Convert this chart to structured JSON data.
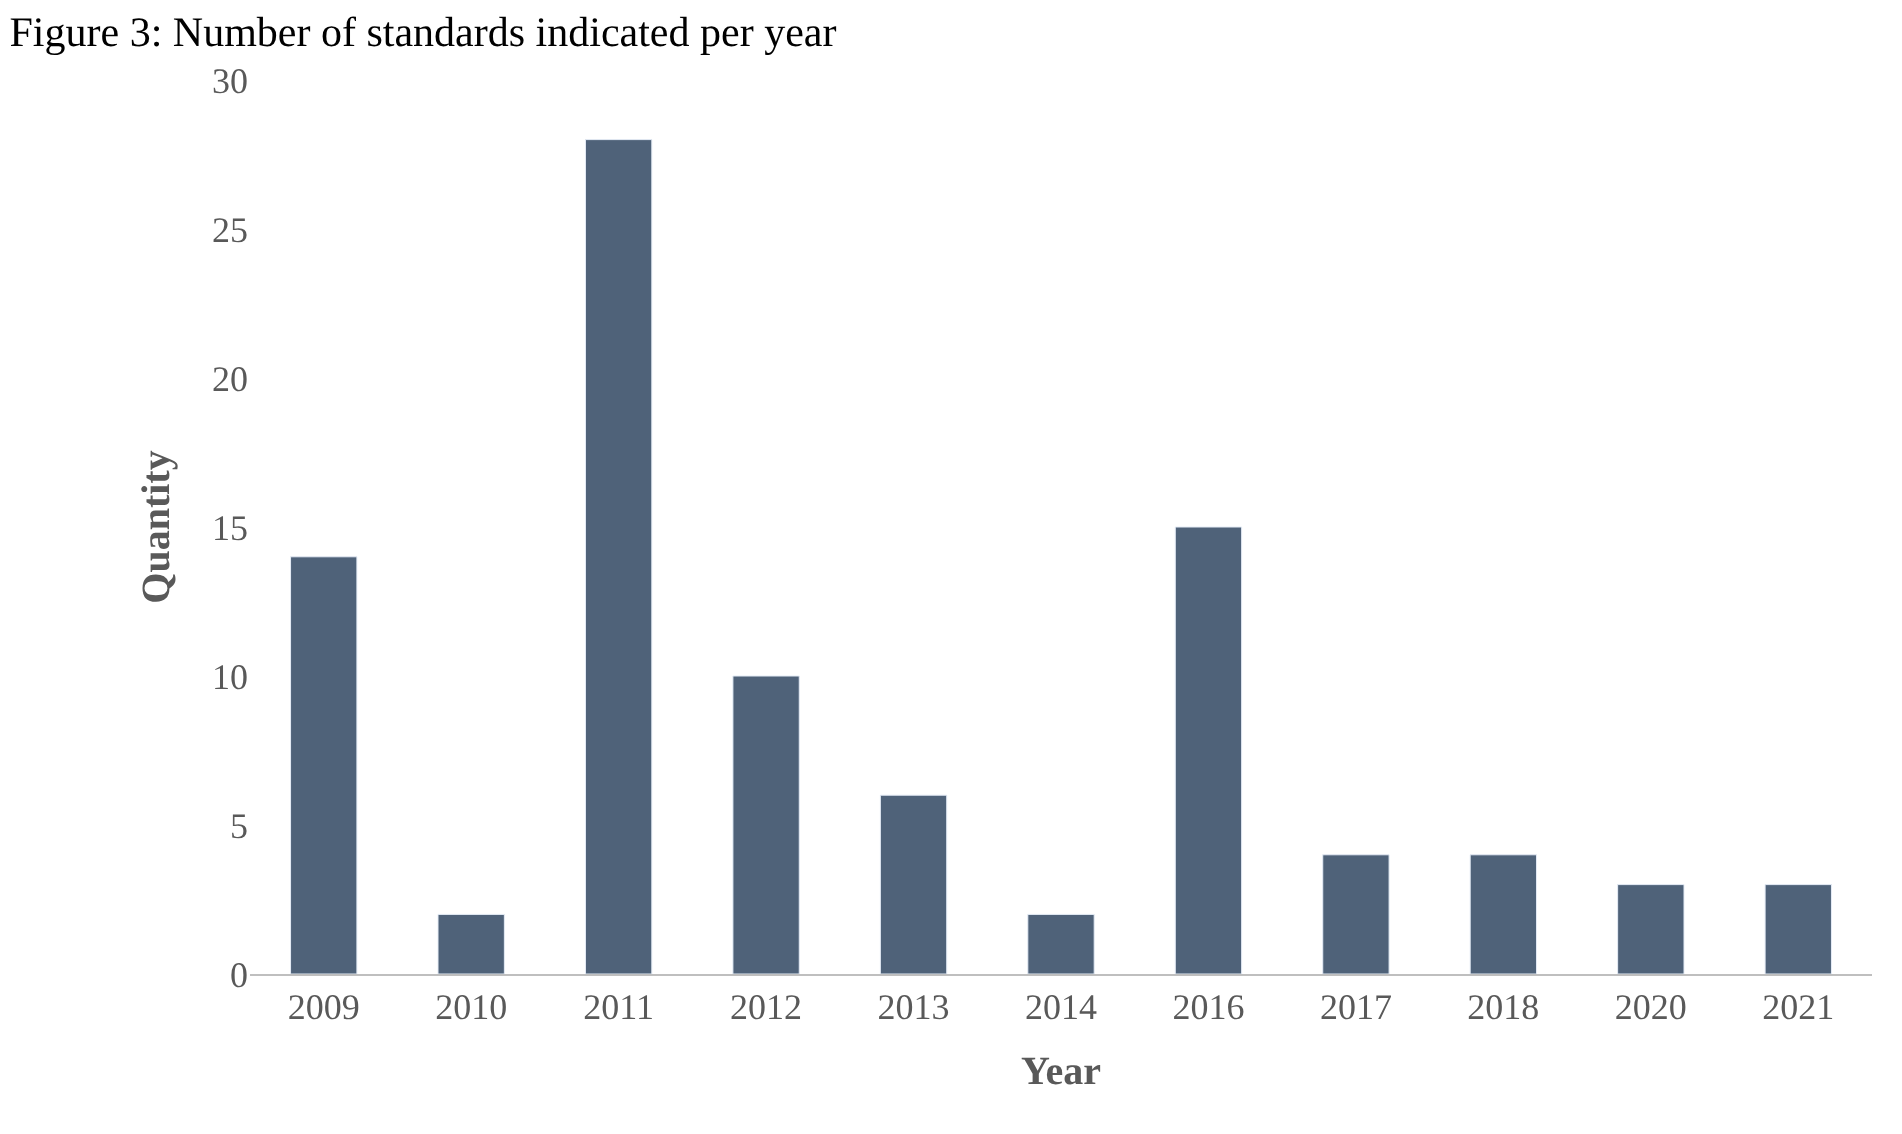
{
  "chart_data": {
    "type": "bar",
    "title": "Figure 3: Number of standards indicated per year",
    "xlabel": "Year",
    "ylabel": "Quantity",
    "categories": [
      "2009",
      "2010",
      "2011",
      "2012",
      "2013",
      "2014",
      "2016",
      "2017",
      "2018",
      "2020",
      "2021"
    ],
    "values": [
      14,
      2,
      28,
      10,
      6,
      2,
      15,
      4,
      4,
      3,
      3
    ],
    "color": "#4f6279",
    "ylim": [
      0,
      30
    ],
    "yticks": [
      0,
      5,
      10,
      15,
      20,
      25,
      30
    ],
    "grid": false
  }
}
